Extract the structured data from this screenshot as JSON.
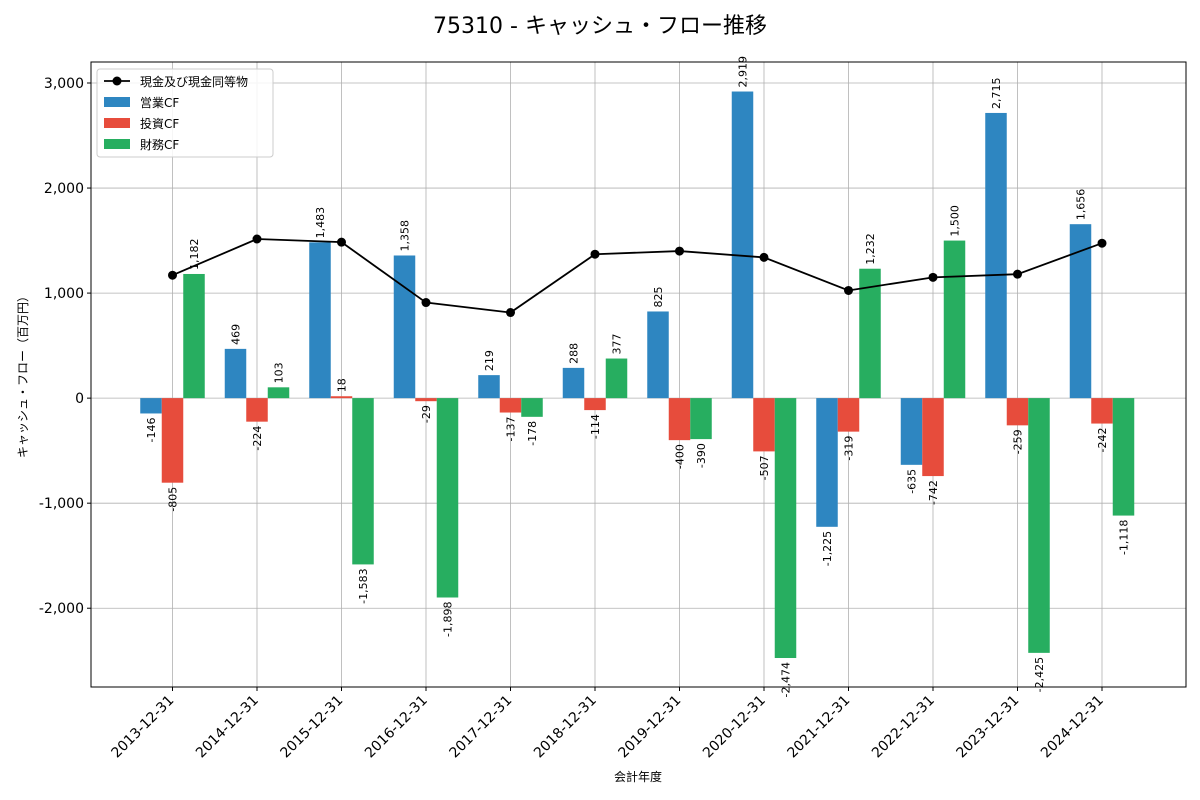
{
  "chart_data": {
    "type": "bar",
    "title": "75310 - キャッシュ・フロー推移",
    "xlabel": "会計年度",
    "ylabel": "キャッシュ・フロー（百万円）",
    "ylim": [
      -2750,
      3200
    ],
    "yticks": [
      -2000,
      -1000,
      0,
      1000,
      2000,
      3000
    ],
    "ytick_labels": [
      "-2,000",
      "-1,000",
      "0",
      "1,000",
      "2,000",
      "3,000"
    ],
    "grid": true,
    "legend_position": "top-left",
    "categories": [
      "2013-12-31",
      "2014-12-31",
      "2015-12-31",
      "2016-12-31",
      "2017-12-31",
      "2018-12-31",
      "2019-12-31",
      "2020-12-31",
      "2021-12-31",
      "2022-12-31",
      "2023-12-31",
      "2024-12-31"
    ],
    "series": [
      {
        "name": "営業CF",
        "type": "bar",
        "color": "#2e86c1",
        "values": [
          -146,
          469,
          1483,
          1358,
          219,
          288,
          825,
          2919,
          -1225,
          -635,
          2715,
          1656
        ],
        "labels": [
          "-146",
          "469",
          "1,483",
          "1,358",
          "219",
          "288",
          "825",
          "2,919",
          "-1,225",
          "-635",
          "2,715",
          "1,656"
        ]
      },
      {
        "name": "投資CF",
        "type": "bar",
        "color": "#e74c3c",
        "values": [
          -805,
          -224,
          18,
          -29,
          -137,
          -114,
          -400,
          -507,
          -319,
          -742,
          -259,
          -242
        ],
        "labels": [
          "-805",
          "-224",
          "18",
          "-29",
          "-137",
          "-114",
          "-400",
          "-507",
          "-319",
          "-742",
          "-259",
          "-242"
        ]
      },
      {
        "name": "財務CF",
        "type": "bar",
        "color": "#27ae60",
        "values": [
          1182,
          103,
          -1583,
          -1898,
          -178,
          377,
          -390,
          -2474,
          1232,
          1500,
          -2425,
          -1118
        ],
        "labels": [
          "1,182",
          "103",
          "-1,583",
          "-1,898",
          "-178",
          "377",
          "-390",
          "-2,474",
          "1,232",
          "1,500",
          "-2,425",
          "-1,118"
        ]
      },
      {
        "name": "現金及び現金同等物",
        "type": "line",
        "color": "#000000",
        "values": [
          1170,
          1515,
          1485,
          910,
          815,
          1370,
          1400,
          1340,
          1025,
          1150,
          1180,
          1475
        ]
      }
    ]
  }
}
